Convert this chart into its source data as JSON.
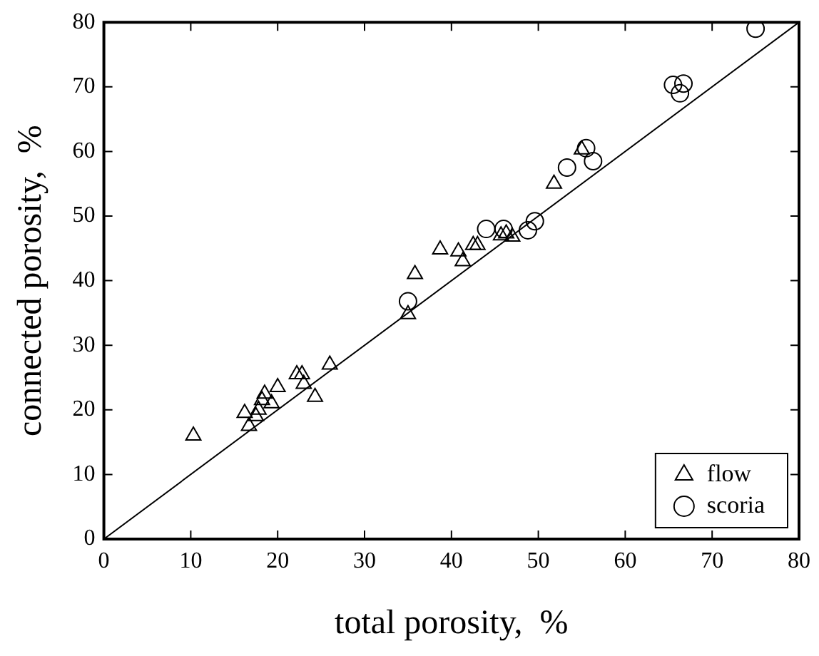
{
  "chart_data": {
    "type": "scatter",
    "xlabel": "total porosity,  %",
    "ylabel": "connected porosity,  %",
    "xlim": [
      0,
      80
    ],
    "ylim": [
      0,
      80
    ],
    "xticks": [
      0,
      10,
      20,
      30,
      40,
      50,
      60,
      70,
      80
    ],
    "yticks": [
      0,
      10,
      20,
      30,
      40,
      50,
      60,
      70,
      80
    ],
    "grid": false,
    "legend": "bottom right",
    "series": [
      {
        "name": "flow",
        "color": "#000000",
        "marker": "triangle",
        "x": [
          10.3,
          16.2,
          16.7,
          17.5,
          17.8,
          18.2,
          18.5,
          19.3,
          20,
          22.2,
          22.8,
          23,
          24.3,
          26,
          35,
          35.8,
          38.7,
          40.8,
          41.3,
          42.5,
          43,
          45.7,
          46.3,
          47,
          51.8,
          55
        ],
        "values": [
          16,
          19.5,
          17.5,
          19,
          20,
          21.5,
          22.5,
          21,
          23.5,
          25.5,
          25.5,
          24,
          22,
          27,
          34.8,
          41,
          44.8,
          44.5,
          43,
          45.5,
          45.5,
          47,
          47.3,
          46.8,
          55,
          60.3
        ]
      },
      {
        "name": "scoria",
        "color": "#000000",
        "marker": "circle",
        "x": [
          35,
          44,
          46,
          48.8,
          49.6,
          53.3,
          55.5,
          56.3,
          65.5,
          66.3,
          66.7,
          75
        ],
        "values": [
          36.8,
          48,
          48,
          47.8,
          49.2,
          57.5,
          60.5,
          58.5,
          70.3,
          69,
          70.5,
          79
        ]
      },
      {
        "type": "line",
        "color": "#000000",
        "marker": "none",
        "x": [
          0,
          80
        ],
        "values": [
          0,
          80
        ]
      }
    ]
  }
}
